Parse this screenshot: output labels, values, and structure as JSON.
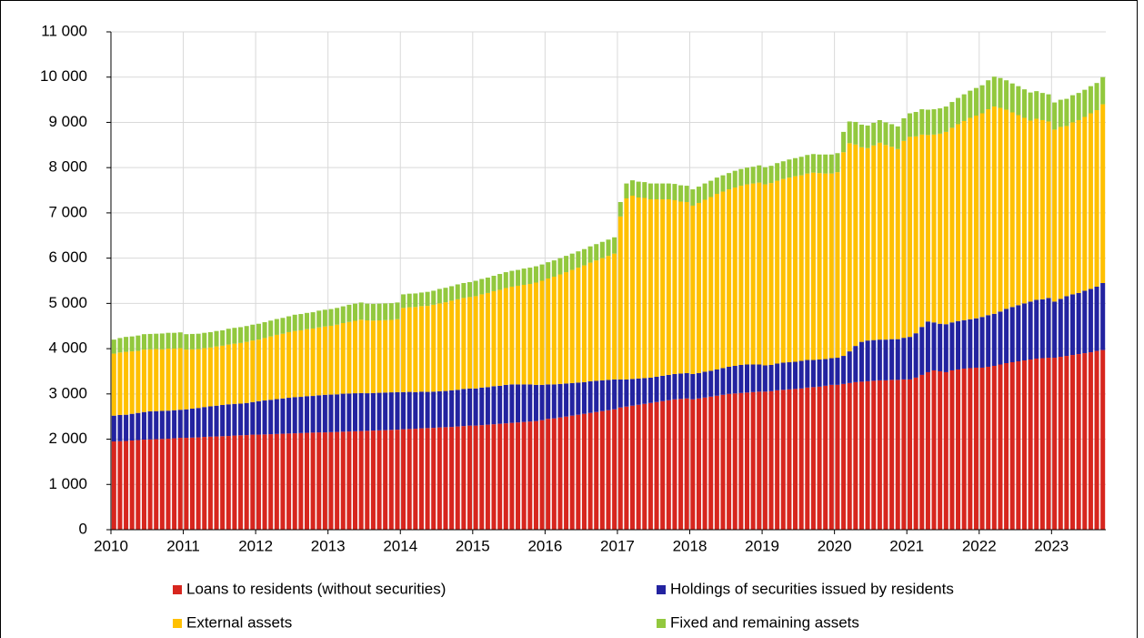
{
  "chart_data": {
    "type": "stacked_bar",
    "categories": [
      "2010",
      null,
      null,
      null,
      null,
      null,
      null,
      null,
      null,
      null,
      null,
      null,
      "2011",
      null,
      null,
      null,
      null,
      null,
      null,
      null,
      null,
      null,
      null,
      null,
      "2012",
      null,
      null,
      null,
      null,
      null,
      null,
      null,
      null,
      null,
      null,
      null,
      "2013",
      null,
      null,
      null,
      null,
      null,
      null,
      null,
      null,
      null,
      null,
      null,
      "2014",
      null,
      null,
      null,
      null,
      null,
      null,
      null,
      null,
      null,
      null,
      null,
      "2015",
      null,
      null,
      null,
      null,
      null,
      null,
      null,
      null,
      null,
      null,
      null,
      "2016",
      null,
      null,
      null,
      null,
      null,
      null,
      null,
      null,
      null,
      null,
      null,
      "2017",
      null,
      null,
      null,
      null,
      null,
      null,
      null,
      null,
      null,
      null,
      null,
      "2018",
      null,
      null,
      null,
      null,
      null,
      null,
      null,
      null,
      null,
      null,
      null,
      "2019",
      null,
      null,
      null,
      null,
      null,
      null,
      null,
      null,
      null,
      null,
      null,
      "2020",
      null,
      null,
      null,
      null,
      null,
      null,
      null,
      null,
      null,
      null,
      null,
      "2021",
      null,
      null,
      null,
      null,
      null,
      null,
      null,
      null,
      null,
      null,
      null,
      "2022",
      null,
      null,
      null,
      null,
      null,
      null,
      null,
      null,
      null,
      null,
      null,
      "2023",
      null,
      null,
      null,
      null,
      null,
      null,
      null,
      null
    ],
    "series": [
      {
        "name": "Loans to residents (without securities)",
        "color": "#d7261e",
        "values": [
          1950,
          1955,
          1960,
          1970,
          1980,
          1990,
          1995,
          2000,
          2005,
          2010,
          2020,
          2030,
          2030,
          2035,
          2040,
          2050,
          2055,
          2060,
          2065,
          2070,
          2080,
          2085,
          2090,
          2100,
          2100,
          2105,
          2110,
          2115,
          2120,
          2125,
          2130,
          2135,
          2140,
          2145,
          2150,
          2150,
          2155,
          2160,
          2165,
          2170,
          2175,
          2180,
          2185,
          2190,
          2195,
          2200,
          2205,
          2210,
          2220,
          2225,
          2230,
          2240,
          2245,
          2250,
          2260,
          2265,
          2270,
          2280,
          2290,
          2300,
          2300,
          2310,
          2320,
          2330,
          2340,
          2350,
          2360,
          2370,
          2380,
          2390,
          2400,
          2420,
          2450,
          2460,
          2480,
          2500,
          2520,
          2540,
          2560,
          2580,
          2600,
          2620,
          2640,
          2660,
          2700,
          2720,
          2740,
          2760,
          2780,
          2800,
          2820,
          2840,
          2860,
          2880,
          2890,
          2900,
          2880,
          2900,
          2920,
          2940,
          2960,
          2980,
          3000,
          3010,
          3020,
          3030,
          3040,
          3050,
          3050,
          3060,
          3080,
          3090,
          3100,
          3110,
          3120,
          3140,
          3150,
          3160,
          3180,
          3200,
          3200,
          3220,
          3240,
          3260,
          3270,
          3280,
          3290,
          3300,
          3300,
          3310,
          3310,
          3320,
          3320,
          3360,
          3420,
          3480,
          3520,
          3500,
          3480,
          3520,
          3540,
          3560,
          3570,
          3580,
          3580,
          3600,
          3620,
          3650,
          3680,
          3700,
          3720,
          3740,
          3760,
          3780,
          3790,
          3800,
          3800,
          3820,
          3840,
          3860,
          3880,
          3900,
          3920,
          3950,
          3970
        ]
      },
      {
        "name": "Holdings of securities issued by residents",
        "color": "#2323a0",
        "values": [
          570,
          580,
          580,
          590,
          600,
          610,
          620,
          620,
          620,
          620,
          620,
          620,
          630,
          640,
          650,
          660,
          670,
          680,
          690,
          700,
          700,
          700,
          710,
          720,
          740,
          750,
          760,
          770,
          780,
          790,
          800,
          800,
          810,
          810,
          820,
          830,
          830,
          830,
          840,
          840,
          840,
          840,
          830,
          830,
          830,
          830,
          830,
          830,
          820,
          820,
          810,
          810,
          800,
          800,
          800,
          800,
          810,
          810,
          820,
          820,
          820,
          830,
          830,
          840,
          840,
          850,
          850,
          840,
          830,
          820,
          800,
          780,
          760,
          750,
          740,
          730,
          720,
          710,
          700,
          700,
          690,
          680,
          670,
          660,
          620,
          600,
          590,
          580,
          570,
          560,
          560,
          560,
          560,
          560,
          560,
          560,
          560,
          560,
          570,
          570,
          580,
          590,
          600,
          610,
          620,
          620,
          610,
          600,
          580,
          580,
          590,
          600,
          600,
          600,
          610,
          610,
          600,
          600,
          590,
          590,
          600,
          620,
          700,
          800,
          880,
          900,
          900,
          900,
          900,
          900,
          900,
          920,
          940,
          980,
          1060,
          1120,
          1060,
          1050,
          1060,
          1060,
          1070,
          1070,
          1080,
          1090,
          1120,
          1140,
          1150,
          1170,
          1200,
          1220,
          1240,
          1260,
          1280,
          1300,
          1300,
          1320,
          1240,
          1280,
          1320,
          1340,
          1350,
          1380,
          1400,
          1420,
          1480
        ]
      },
      {
        "name": "External assets",
        "color": "#ffc000",
        "values": [
          1370,
          1380,
          1390,
          1380,
          1370,
          1380,
          1370,
          1370,
          1360,
          1370,
          1360,
          1360,
          1320,
          1310,
          1300,
          1300,
          1300,
          1310,
          1310,
          1320,
          1330,
          1340,
          1350,
          1360,
          1360,
          1380,
          1400,
          1420,
          1430,
          1450,
          1460,
          1470,
          1480,
          1490,
          1500,
          1510,
          1520,
          1540,
          1560,
          1580,
          1600,
          1620,
          1610,
          1600,
          1600,
          1600,
          1600,
          1610,
          1860,
          1870,
          1880,
          1890,
          1900,
          1920,
          1940,
          1960,
          1980,
          2000,
          2010,
          2020,
          2040,
          2060,
          2080,
          2100,
          2120,
          2140,
          2160,
          2180,
          2200,
          2220,
          2260,
          2300,
          2340,
          2380,
          2420,
          2460,
          2500,
          2540,
          2580,
          2620,
          2660,
          2700,
          2740,
          2780,
          3600,
          4000,
          4050,
          4000,
          3980,
          3940,
          3920,
          3900,
          3880,
          3840,
          3800,
          3780,
          3720,
          3760,
          3800,
          3840,
          3880,
          3900,
          3920,
          3940,
          3960,
          3980,
          4000,
          4020,
          4000,
          4020,
          4040,
          4060,
          4080,
          4100,
          4100,
          4120,
          4140,
          4120,
          4100,
          4080,
          4100,
          4500,
          4600,
          4450,
          4300,
          4250,
          4300,
          4350,
          4300,
          4250,
          4200,
          4350,
          4420,
          4350,
          4250,
          4120,
          4150,
          4200,
          4250,
          4300,
          4350,
          4400,
          4450,
          4480,
          4500,
          4550,
          4580,
          4500,
          4400,
          4300,
          4200,
          4100,
          4000,
          4000,
          3960,
          3900,
          3800,
          3800,
          3760,
          3800,
          3820,
          3840,
          3880,
          3900,
          3950
        ]
      },
      {
        "name": "Fixed and remaining assets",
        "color": "#92c83e",
        "values": [
          310,
          320,
          330,
          330,
          340,
          340,
          340,
          340,
          350,
          350,
          350,
          350,
          340,
          340,
          340,
          340,
          340,
          340,
          340,
          350,
          350,
          350,
          350,
          350,
          350,
          350,
          350,
          350,
          350,
          350,
          360,
          360,
          360,
          360,
          370,
          370,
          370,
          370,
          370,
          380,
          380,
          380,
          370,
          370,
          370,
          370,
          370,
          370,
          300,
          300,
          300,
          300,
          310,
          310,
          320,
          320,
          320,
          330,
          330,
          330,
          340,
          340,
          340,
          340,
          350,
          350,
          350,
          350,
          360,
          360,
          360,
          360,
          360,
          360,
          360,
          360,
          360,
          360,
          360,
          360,
          360,
          360,
          360,
          360,
          320,
          330,
          340,
          350,
          350,
          350,
          350,
          350,
          350,
          360,
          360,
          360,
          360,
          360,
          360,
          360,
          360,
          360,
          360,
          370,
          370,
          370,
          370,
          380,
          380,
          380,
          390,
          390,
          400,
          400,
          410,
          410,
          410,
          410,
          420,
          420,
          420,
          450,
          480,
          500,
          500,
          500,
          500,
          500,
          500,
          500,
          500,
          500,
          520,
          540,
          560,
          560,
          560,
          560,
          560,
          570,
          580,
          590,
          600,
          610,
          620,
          640,
          660,
          660,
          650,
          640,
          640,
          630,
          620,
          610,
          600,
          600,
          600,
          600,
          600,
          600,
          600,
          600,
          600,
          600,
          600
        ]
      }
    ],
    "ylim": [
      0,
      11000
    ],
    "yticks": [
      0,
      {
        "value": 1000,
        "label": "1 000"
      },
      {
        "value": 2000,
        "label": "2 000"
      },
      {
        "value": 3000,
        "label": "3 000"
      },
      {
        "value": 4000,
        "label": "4 000"
      },
      {
        "value": 5000,
        "label": "5 000"
      },
      {
        "value": 6000,
        "label": "6 000"
      },
      {
        "value": 7000,
        "label": "7 000"
      },
      {
        "value": 8000,
        "label": "8 000"
      },
      {
        "value": 9000,
        "label": "9 000"
      },
      {
        "value": 10000,
        "label": "10 000"
      },
      {
        "value": 11000,
        "label": "11 000"
      }
    ],
    "grid": true
  }
}
